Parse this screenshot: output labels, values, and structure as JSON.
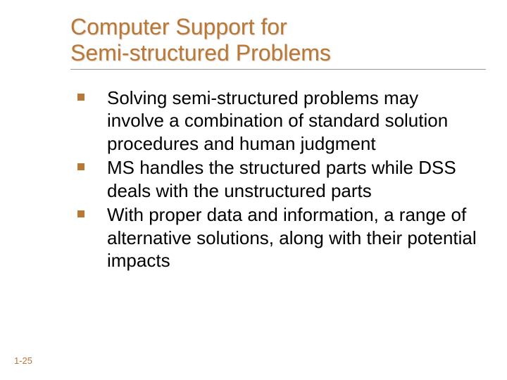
{
  "slide": {
    "title_line1": "Computer Support for",
    "title_line2": "Semi-structured Problems",
    "bullets": [
      "Solving semi-structured problems may involve a combination of standard solution procedures and human judgment",
      "MS handles the structured parts while DSS deals with the unstructured parts",
      "With proper data and information, a range of alternative solutions, along with their potential impacts"
    ],
    "page_number": "1-25"
  },
  "style": {
    "title_color": "#b87838",
    "bullet_marker_color": "#b87838",
    "body_text_color": "#000000",
    "underline_color": "#999999",
    "background_color": "#ffffff",
    "title_fontsize": 32,
    "body_fontsize": 26,
    "page_number_fontsize": 13
  }
}
